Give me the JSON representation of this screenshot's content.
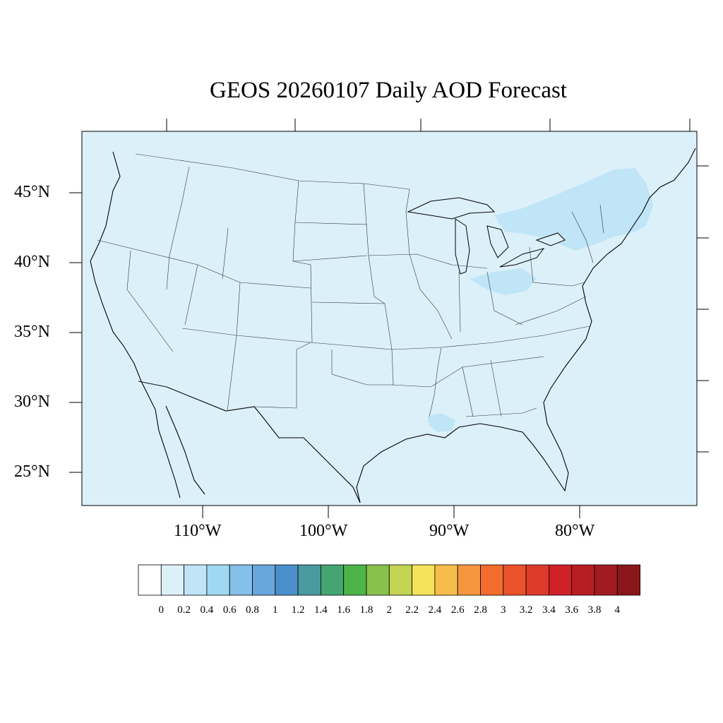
{
  "title": "GEOS 20260107 Daily AOD Forecast",
  "map": {
    "background_color": "#dcf0fa",
    "lat_labels": [
      "45°N",
      "40°N",
      "35°N",
      "30°N",
      "25°N"
    ],
    "lon_labels": [
      "110°W",
      "100°W",
      "90°W",
      "80°W"
    ]
  },
  "colorbar": {
    "labels": [
      "0",
      "0.2",
      "0.4",
      "0.6",
      "0.8",
      "1",
      "1.2",
      "1.4",
      "1.6",
      "1.8",
      "2",
      "2.2",
      "2.4",
      "2.6",
      "2.8",
      "3",
      "3.2",
      "3.4",
      "3.6",
      "3.8",
      "4"
    ],
    "colors": [
      "#ffffff",
      "#dcf0fa",
      "#bfe5f7",
      "#a0d8f3",
      "#84c0e8",
      "#68a6dc",
      "#4a8fcb",
      "#4a9aa0",
      "#45a570",
      "#4db449",
      "#88c14e",
      "#c2d452",
      "#f4e35a",
      "#f6bd4a",
      "#f5963e",
      "#f26c2e",
      "#e9522b",
      "#de3a2b",
      "#d02028",
      "#b81d24",
      "#a11b21",
      "#8b1619"
    ]
  }
}
